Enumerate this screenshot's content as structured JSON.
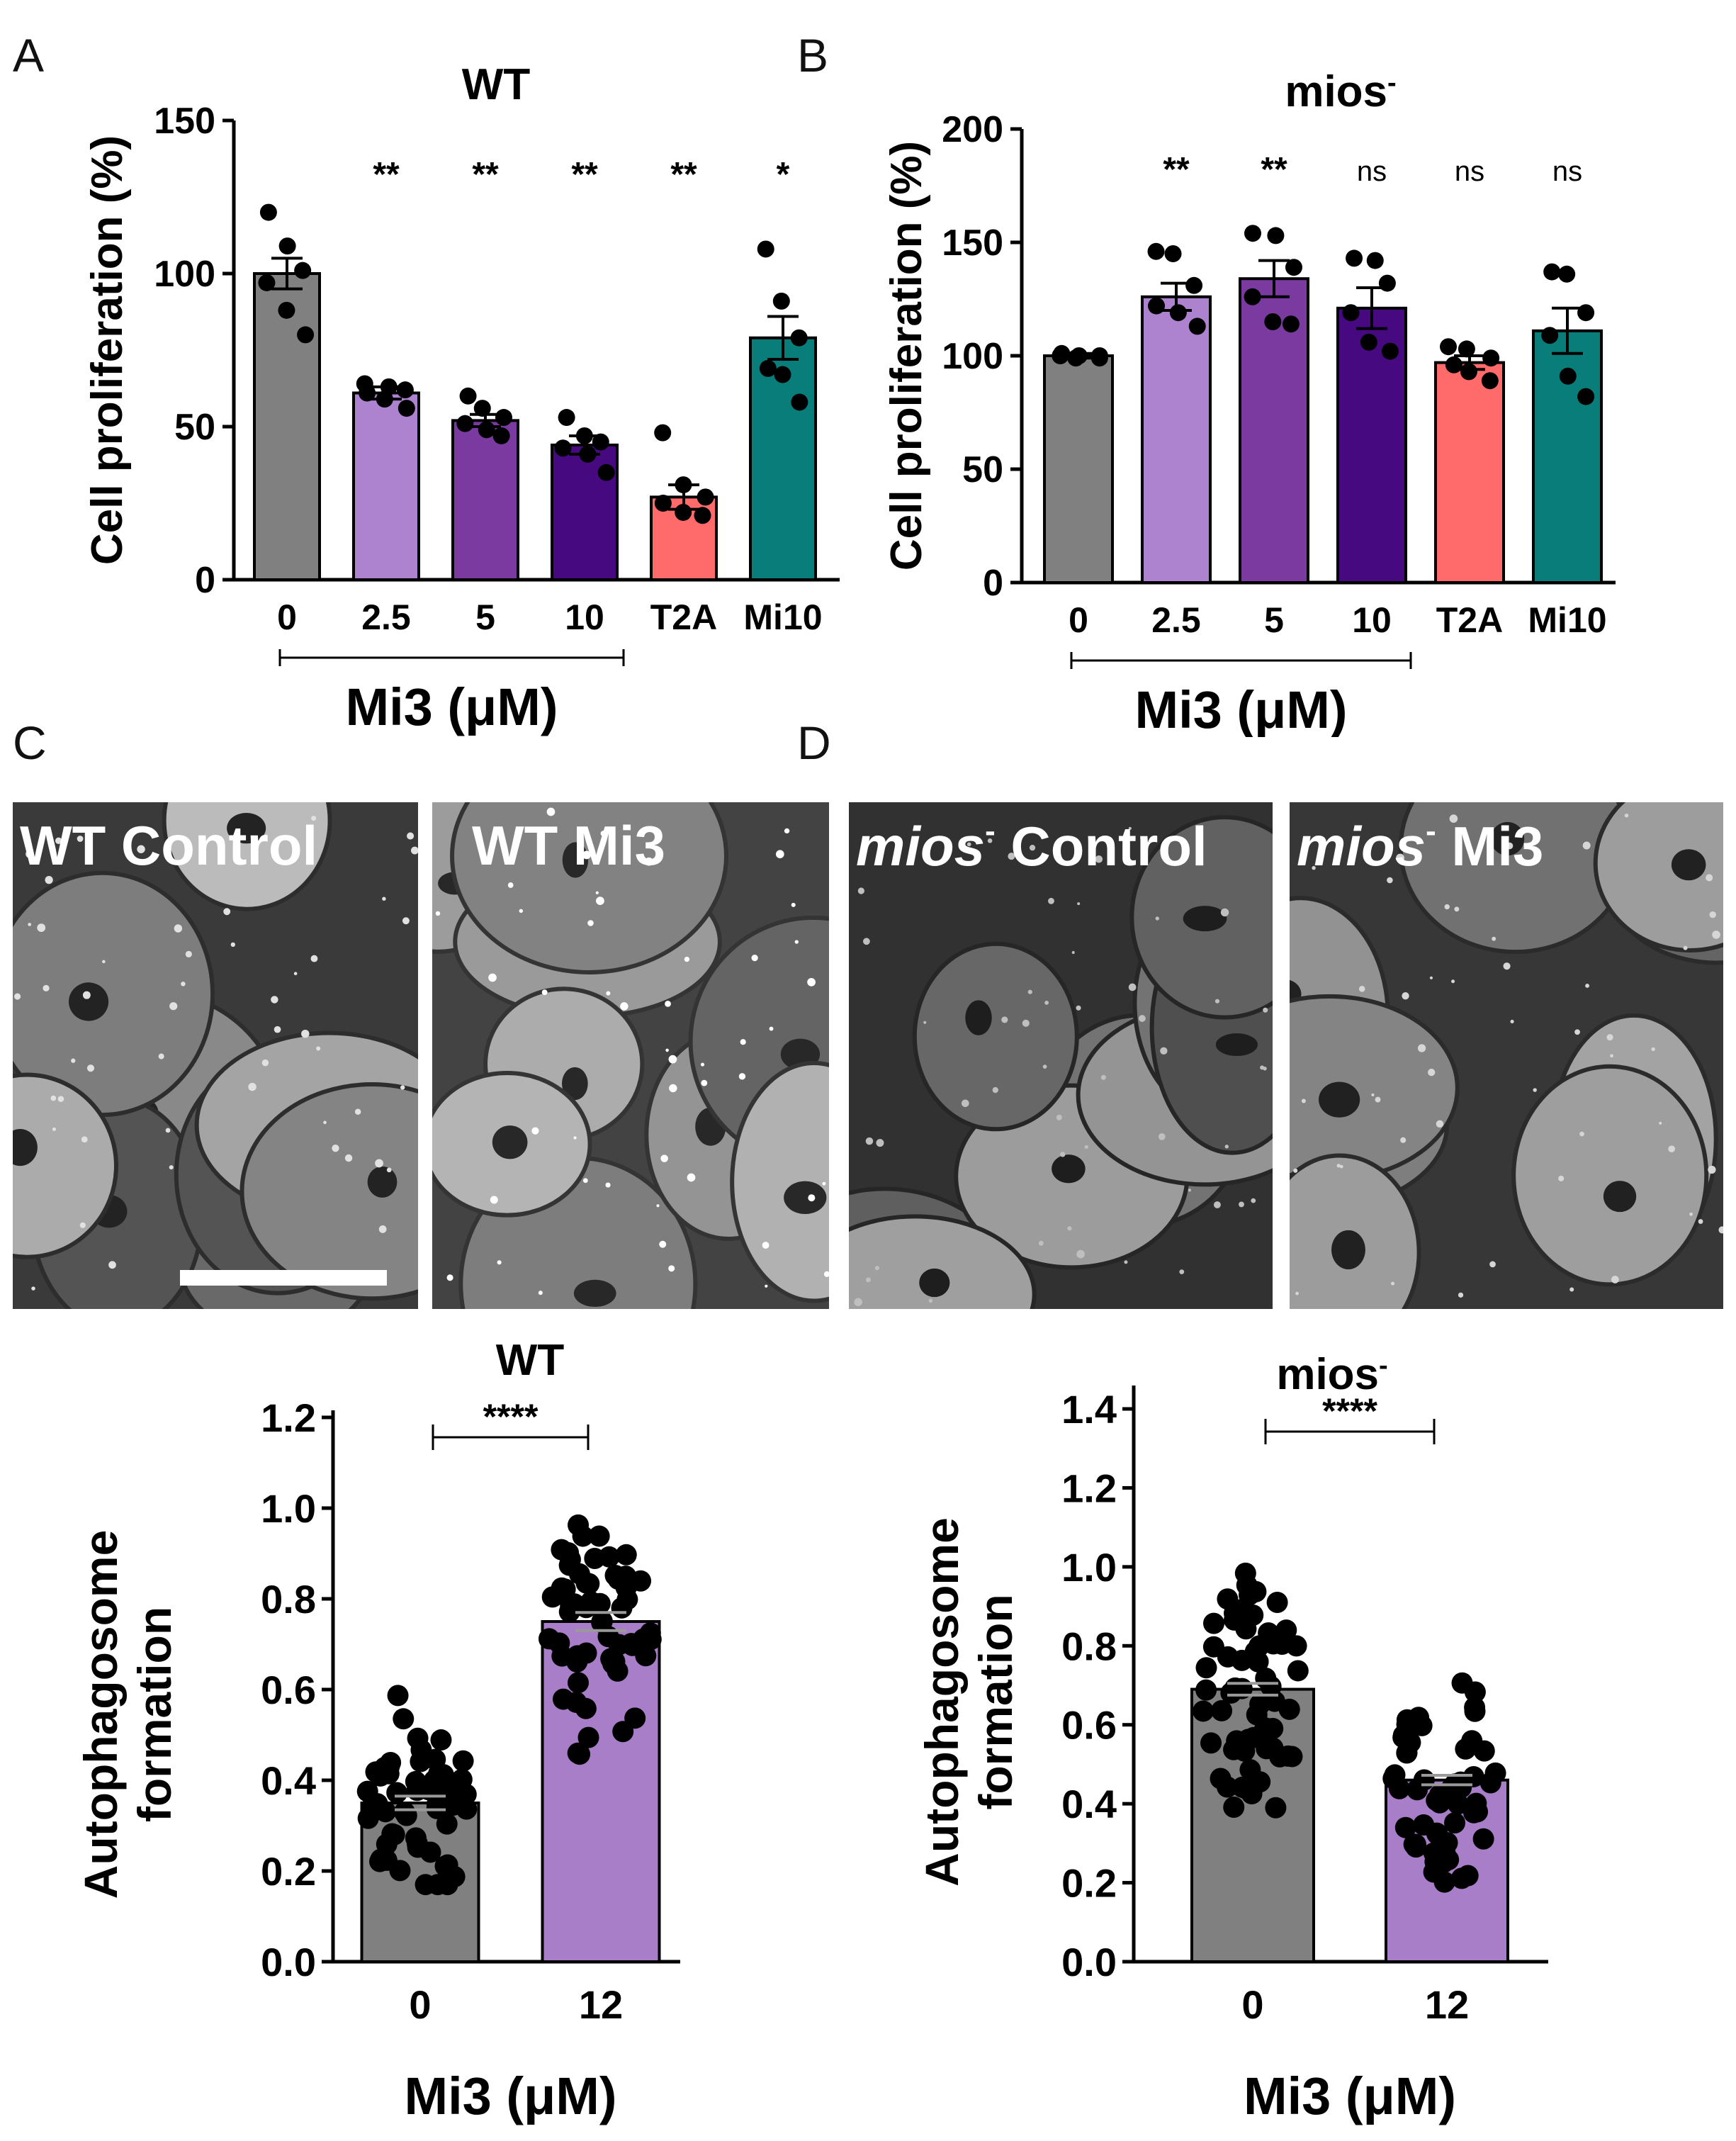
{
  "panel_letters": [
    "A",
    "B",
    "C",
    "D"
  ],
  "colors": {
    "gray": "#808080",
    "lilac": "#ad83cf",
    "purple": "#7a3aa0",
    "indigo": "#47097f",
    "salmon": "#ff6b6b",
    "teal": "#087d7a",
    "bar_light_purple": "#a77ec7"
  },
  "micrographs": [
    {
      "label": "WT Control"
    },
    {
      "label": "WT Mi3"
    },
    {
      "label_italic": "mios",
      "label_sup": "-",
      "label_rest": " Control"
    },
    {
      "label_italic": "mios",
      "label_sup": "-",
      "label_rest": " Mi3"
    }
  ],
  "chart_data": [
    {
      "panel": "A",
      "type": "bar",
      "title": "WT",
      "ylabel": "Cell proliferation (%)",
      "xlabel": "Mi3 (μM)",
      "ylim": [
        0,
        150
      ],
      "yticks": [
        0,
        50,
        100,
        150
      ],
      "categories": [
        "0",
        "2.5",
        "5",
        "10",
        "T2A",
        "Mi10"
      ],
      "bracket_span": [
        "0",
        "10"
      ],
      "values": [
        100,
        61,
        52,
        44,
        27,
        79
      ],
      "errors": [
        5,
        2,
        2,
        3,
        4,
        7
      ],
      "colors": [
        "#808080",
        "#ad83cf",
        "#7a3aa0",
        "#47097f",
        "#ff6b6b",
        "#087d7a"
      ],
      "points": [
        [
          120,
          109,
          101,
          97,
          88,
          80
        ],
        [
          64,
          63,
          62,
          61,
          59,
          56
        ],
        [
          60,
          56,
          53,
          51,
          49,
          47
        ],
        [
          53,
          47,
          45,
          43,
          41,
          35
        ],
        [
          48,
          31,
          27,
          25,
          22,
          21
        ],
        [
          108,
          91,
          79,
          69,
          67,
          58
        ]
      ],
      "annotations": [
        "",
        "**",
        "**",
        "**",
        "**",
        "*"
      ]
    },
    {
      "panel": "B",
      "type": "bar",
      "title": "mios",
      "title_sup": "-",
      "ylabel": "Cell proliferation (%)",
      "xlabel": "Mi3 (μM)",
      "ylim": [
        0,
        200
      ],
      "yticks": [
        0,
        50,
        100,
        150,
        200
      ],
      "categories": [
        "0",
        "2.5",
        "5",
        "10",
        "T2A",
        "Mi10"
      ],
      "bracket_span": [
        "0",
        "10"
      ],
      "values": [
        100,
        126,
        134,
        121,
        97,
        111
      ],
      "errors": [
        1,
        6,
        8,
        9,
        3,
        10
      ],
      "colors": [
        "#808080",
        "#ad83cf",
        "#7a3aa0",
        "#47097f",
        "#ff6b6b",
        "#087d7a"
      ],
      "points": [
        [
          101,
          100,
          100,
          100,
          99,
          99
        ],
        [
          146,
          145,
          131,
          122,
          119,
          113
        ],
        [
          154,
          153,
          139,
          126,
          115,
          114
        ],
        [
          143,
          142,
          132,
          119,
          106,
          102
        ],
        [
          104,
          103,
          99,
          96,
          93,
          89
        ],
        [
          137,
          136,
          119,
          109,
          91,
          82
        ]
      ],
      "annotations": [
        "",
        "**",
        "**",
        "ns",
        "ns",
        "ns"
      ]
    },
    {
      "panel": "C",
      "type": "bar",
      "title": "WT",
      "ylabel": "Autophagosome\nformation",
      "xlabel": "Mi3 (μM)",
      "ylim": [
        0,
        1.2
      ],
      "yticks": [
        0.0,
        0.2,
        0.4,
        0.6,
        0.8,
        1.0,
        1.2
      ],
      "categories": [
        "0",
        "12"
      ],
      "values": [
        0.35,
        0.75
      ],
      "errors": [
        0.015,
        0.02
      ],
      "colors": [
        "#808080",
        "#a77ec7"
      ],
      "significance": "****",
      "scatter_range": [
        [
          0.17,
          0.63
        ],
        [
          0.43,
          0.98
        ]
      ]
    },
    {
      "panel": "D",
      "type": "bar",
      "title": "mios",
      "title_sup": "-",
      "ylabel": "Autophagosome\nformation",
      "xlabel": "Mi3 (μM)",
      "ylim": [
        0,
        1.4
      ],
      "yticks": [
        0.0,
        0.2,
        0.4,
        0.6,
        0.8,
        1.0,
        1.2,
        1.4
      ],
      "categories": [
        "0",
        "12"
      ],
      "values": [
        0.69,
        0.46
      ],
      "errors": [
        0.015,
        0.012
      ],
      "colors": [
        "#808080",
        "#a77ec7"
      ],
      "significance": "****",
      "scatter_range": [
        [
          0.39,
          1.03
        ],
        [
          0.18,
          0.71
        ]
      ]
    }
  ]
}
